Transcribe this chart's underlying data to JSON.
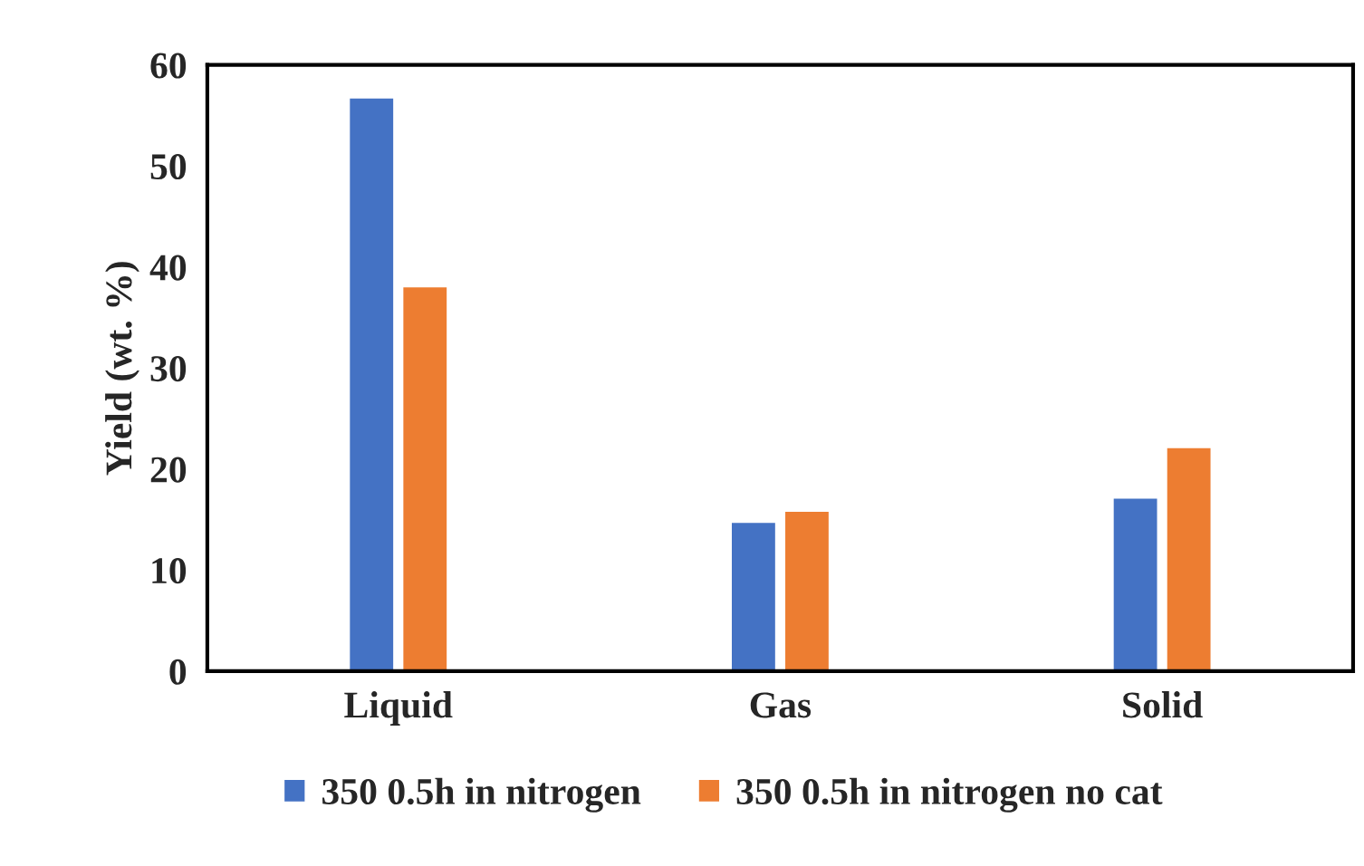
{
  "chart_data": {
    "type": "bar",
    "ylabel": "Yield (wt. %)",
    "categories": [
      "Liquid",
      "Gas",
      "Solid"
    ],
    "series": [
      {
        "name": "350 0.5h in nitrogen",
        "color": "#4472c4",
        "values": [
          56.8,
          14.8,
          17.2
        ]
      },
      {
        "name": "350 0.5h in nitrogen no cat",
        "color": "#ed7d31",
        "values": [
          38.1,
          15.9,
          22.2
        ]
      }
    ],
    "ylim": [
      0,
      60
    ],
    "yticks": [
      0,
      10,
      20,
      30,
      40,
      50,
      60
    ],
    "grid": false,
    "legend": "bottom"
  }
}
